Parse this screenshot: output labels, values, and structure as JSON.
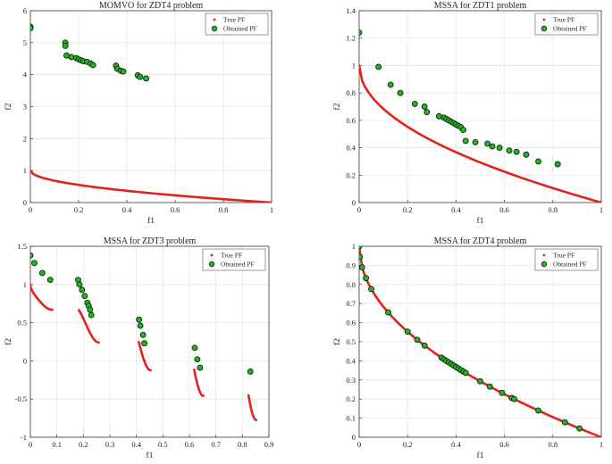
{
  "colors": {
    "true_pf": "#e2231a",
    "obtained_fill": "#22b422",
    "obtained_edge": "#0b2a0b",
    "grid": "#e6e6e6",
    "axis": "#3a3a3a"
  },
  "chart_data": [
    {
      "type": "scatter",
      "title": "MOMVO for ZDT4 problem",
      "xlabel": "f1",
      "ylabel": "f2",
      "xlim": [
        0,
        1
      ],
      "ylim": [
        0,
        6
      ],
      "xticks": [
        "0",
        "0.2",
        "0.4",
        "0.6",
        "0.8",
        "1"
      ],
      "xtick_values": [
        0,
        0.2,
        0.4,
        0.6,
        0.8,
        1
      ],
      "yticks": [
        "0",
        "1",
        "2",
        "3",
        "4",
        "5",
        "6"
      ],
      "ytick_values": [
        0,
        1,
        2,
        3,
        4,
        5,
        6
      ],
      "grid": true,
      "legend": {
        "position": "top-right",
        "entries": [
          "True PF",
          "Obtained PF"
        ]
      },
      "series": [
        {
          "name": "True PF",
          "kind": "curve",
          "segments": [
            [
              0,
              1
            ]
          ],
          "function": "1-sqrt(x)"
        },
        {
          "name": "Obtained PF",
          "kind": "points",
          "x": [
            0.0,
            0.0,
            0.145,
            0.145,
            0.15,
            0.17,
            0.19,
            0.2,
            0.21,
            0.22,
            0.235,
            0.25,
            0.26,
            0.355,
            0.36,
            0.375,
            0.385,
            0.445,
            0.455,
            0.48
          ],
          "y": [
            5.5,
            5.45,
            5.0,
            4.9,
            4.6,
            4.55,
            4.52,
            4.48,
            4.45,
            4.42,
            4.4,
            4.35,
            4.3,
            4.28,
            4.18,
            4.12,
            4.1,
            3.98,
            3.93,
            3.88
          ]
        }
      ]
    },
    {
      "type": "scatter",
      "title": "MSSA for ZDT1 problem",
      "xlabel": "f1",
      "ylabel": "f2",
      "xlim": [
        0,
        1
      ],
      "ylim": [
        0,
        1.4
      ],
      "xticks": [
        "0",
        "0.2",
        "0.4",
        "0.6",
        "0.8",
        "1"
      ],
      "xtick_values": [
        0,
        0.2,
        0.4,
        0.6,
        0.8,
        1
      ],
      "yticks": [
        "0",
        "0.2",
        "0.4",
        "0.6",
        "0.8",
        "1",
        "1.2",
        "1.4"
      ],
      "ytick_values": [
        0,
        0.2,
        0.4,
        0.6,
        0.8,
        1,
        1.2,
        1.4
      ],
      "grid": true,
      "legend": {
        "position": "top-right",
        "entries": [
          "True PF",
          "Obtained PF"
        ]
      },
      "series": [
        {
          "name": "True PF",
          "kind": "curve",
          "segments": [
            [
              0,
              1
            ]
          ],
          "function": "1-sqrt(x)"
        },
        {
          "name": "Obtained PF",
          "kind": "points",
          "x": [
            0.0,
            0.08,
            0.13,
            0.17,
            0.23,
            0.27,
            0.28,
            0.33,
            0.35,
            0.36,
            0.37,
            0.38,
            0.39,
            0.4,
            0.41,
            0.42,
            0.43,
            0.44,
            0.48,
            0.53,
            0.55,
            0.58,
            0.62,
            0.65,
            0.69,
            0.74,
            0.82
          ],
          "y": [
            1.24,
            0.99,
            0.86,
            0.8,
            0.72,
            0.7,
            0.66,
            0.63,
            0.62,
            0.61,
            0.6,
            0.59,
            0.58,
            0.57,
            0.56,
            0.55,
            0.53,
            0.45,
            0.44,
            0.43,
            0.41,
            0.4,
            0.38,
            0.37,
            0.35,
            0.3,
            0.28
          ]
        }
      ]
    },
    {
      "type": "scatter",
      "title": "MSSA for ZDT3 problem",
      "xlabel": "f1",
      "ylabel": "f2",
      "xlim": [
        0,
        0.9
      ],
      "ylim": [
        -1,
        1.5
      ],
      "xticks": [
        "0",
        "0.1",
        "0.2",
        "0.3",
        "0.4",
        "0.5",
        "0.6",
        "0.7",
        "0.8",
        "0.9"
      ],
      "xtick_values": [
        0,
        0.1,
        0.2,
        0.3,
        0.4,
        0.5,
        0.6,
        0.7,
        0.8,
        0.9
      ],
      "yticks": [
        "-1",
        "-0.5",
        "0",
        "0.5",
        "1",
        "1.5"
      ],
      "ytick_values": [
        -1,
        -0.5,
        0,
        0.5,
        1,
        1.5
      ],
      "grid": true,
      "legend": {
        "position": "top-right",
        "entries": [
          "True PF",
          "Obtained PF"
        ]
      },
      "series": [
        {
          "name": "True PF",
          "kind": "curve",
          "segments": [
            [
              0,
              0.083
            ],
            [
              0.183,
              0.258
            ],
            [
              0.409,
              0.454
            ],
            [
              0.618,
              0.653
            ],
            [
              0.823,
              0.852
            ]
          ],
          "function": "1-sqrt(x)-x*sin(10*pi*x)"
        },
        {
          "name": "Obtained PF",
          "kind": "points",
          "x": [
            0.0,
            0.015,
            0.045,
            0.075,
            0.18,
            0.185,
            0.195,
            0.205,
            0.215,
            0.22,
            0.225,
            0.23,
            0.41,
            0.415,
            0.425,
            0.43,
            0.62,
            0.63,
            0.64,
            0.83
          ],
          "y": [
            1.38,
            1.28,
            1.15,
            1.06,
            1.06,
            1.0,
            0.93,
            0.85,
            0.76,
            0.72,
            0.67,
            0.6,
            0.54,
            0.46,
            0.34,
            0.23,
            0.17,
            0.02,
            -0.09,
            -0.14
          ]
        }
      ]
    },
    {
      "type": "scatter",
      "title": "MSSA for ZDT4 problem",
      "xlabel": "f1",
      "ylabel": "f2",
      "xlim": [
        0,
        1
      ],
      "ylim": [
        0,
        1
      ],
      "xticks": [
        "0",
        "0.2",
        "0.4",
        "0.6",
        "0.8",
        "1"
      ],
      "xtick_values": [
        0,
        0.2,
        0.4,
        0.6,
        0.8,
        1
      ],
      "yticks": [
        "0",
        "0.1",
        "0.2",
        "0.3",
        "0.4",
        "0.5",
        "0.6",
        "0.7",
        "0.8",
        "0.9",
        "1"
      ],
      "ytick_values": [
        0,
        0.1,
        0.2,
        0.3,
        0.4,
        0.5,
        0.6,
        0.7,
        0.8,
        0.9,
        1
      ],
      "grid": true,
      "legend": {
        "position": "top-right",
        "entries": [
          "True PF",
          "Obtained PF"
        ]
      },
      "series": [
        {
          "name": "True PF",
          "kind": "curve",
          "segments": [
            [
              0,
              1
            ]
          ],
          "function": "1-sqrt(x)"
        },
        {
          "name": "Obtained PF",
          "kind": "points",
          "x": [
            0.0,
            0.003,
            0.012,
            0.028,
            0.05,
            0.12,
            0.2,
            0.24,
            0.27,
            0.34,
            0.35,
            0.36,
            0.37,
            0.38,
            0.39,
            0.4,
            0.41,
            0.42,
            0.43,
            0.44,
            0.5,
            0.54,
            0.59,
            0.63,
            0.64,
            0.74,
            0.85,
            0.91
          ],
          "y": [
            1.0,
            0.945,
            0.89,
            0.833,
            0.776,
            0.654,
            0.553,
            0.51,
            0.48,
            0.417,
            0.408,
            0.4,
            0.392,
            0.384,
            0.376,
            0.368,
            0.36,
            0.352,
            0.344,
            0.337,
            0.293,
            0.265,
            0.232,
            0.206,
            0.2,
            0.14,
            0.078,
            0.046
          ]
        }
      ]
    }
  ]
}
